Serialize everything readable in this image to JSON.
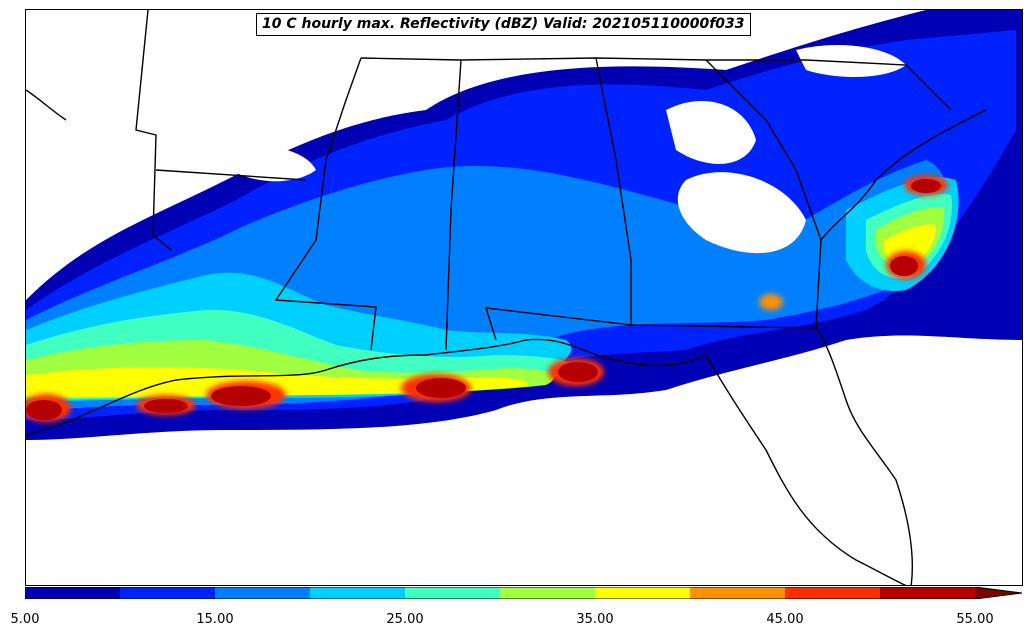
{
  "title": "10 C hourly max. Reflectivity (dBZ) Valid: 202105110000f033",
  "colorbar": {
    "ticks": [
      "5.00",
      "15.00",
      "25.00",
      "35.00",
      "45.00",
      "55.00"
    ],
    "tick_values": [
      5,
      15,
      25,
      35,
      45,
      55
    ],
    "range": [
      5,
      60
    ],
    "bins": [
      {
        "from": 5,
        "to": 10,
        "color": "#0000b4"
      },
      {
        "from": 10,
        "to": 15,
        "color": "#0022ff"
      },
      {
        "from": 15,
        "to": 20,
        "color": "#0080ff"
      },
      {
        "from": 20,
        "to": 25,
        "color": "#00d0ff"
      },
      {
        "from": 25,
        "to": 30,
        "color": "#40ffc0"
      },
      {
        "from": 30,
        "to": 35,
        "color": "#a0ff40"
      },
      {
        "from": 35,
        "to": 40,
        "color": "#ffff00"
      },
      {
        "from": 40,
        "to": 45,
        "color": "#ff9000"
      },
      {
        "from": 45,
        "to": 50,
        "color": "#ff3000"
      },
      {
        "from": 50,
        "to": 55,
        "color": "#b40000"
      }
    ],
    "extend": "max",
    "extend_color": "#800000"
  }
}
